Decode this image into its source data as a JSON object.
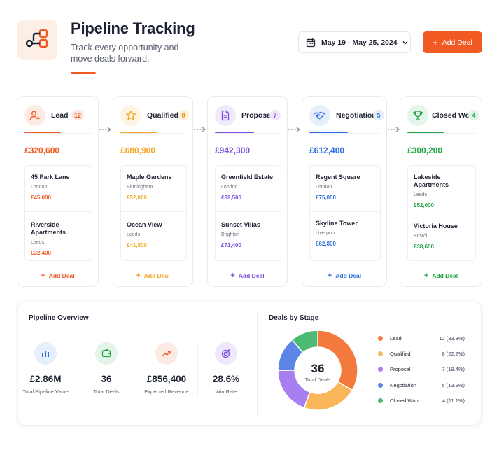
{
  "header": {
    "title": "Pipeline Tracking",
    "subtitle": "Track every opportunity and move deals forward.",
    "date_range": "May 19 - May 25, 2024",
    "add_deal_label": "Add Deal",
    "icons": {
      "logo": "pipeline-flow-icon",
      "date": "calendar-icon",
      "chevron": "chevron-down-icon",
      "add": "plus-icon"
    }
  },
  "colors": {
    "accent": "#f15a22",
    "lead": "#f15a22",
    "qualified": "#f5a623",
    "proposal": "#7b4fe0",
    "negotiation": "#2f6fe0",
    "closed_won": "#22a447"
  },
  "stages": [
    {
      "name": "Lead",
      "count": "12",
      "total": "£320,600",
      "icon": "user-plus-icon",
      "add_label": "Add Deal",
      "deals": [
        {
          "name": "45 Park Lane",
          "city": "London",
          "amount": "£45,000"
        },
        {
          "name": "Riverside Apartments",
          "city": "Leeds",
          "amount": "£32,400"
        }
      ]
    },
    {
      "name": "Qualified",
      "count": "8",
      "total": "£680,900",
      "icon": "star-icon",
      "add_label": "Add Deal",
      "deals": [
        {
          "name": "Maple Gardens",
          "city": "Birmingham",
          "amount": "£52,000"
        },
        {
          "name": "Ocean View",
          "city": "Leeds",
          "amount": "£41,500"
        }
      ]
    },
    {
      "name": "Proposal",
      "count": "7",
      "total": "£942,300",
      "icon": "document-icon",
      "add_label": "Add Deal",
      "deals": [
        {
          "name": "Greenfield Estate",
          "city": "London",
          "amount": "£82,500"
        },
        {
          "name": "Sunset Villas",
          "city": "Brighton",
          "amount": "£71,400"
        }
      ]
    },
    {
      "name": "Negotiation",
      "count": "5",
      "total": "£612,400",
      "icon": "handshake-icon",
      "add_label": "Add Deal",
      "deals": [
        {
          "name": "Regent Square",
          "city": "London",
          "amount": "£75,000"
        },
        {
          "name": "Skyline Tower",
          "city": "Liverpool",
          "amount": "£62,800"
        }
      ]
    },
    {
      "name": "Closed Won",
      "count": "4",
      "total": "£300,200",
      "icon": "trophy-icon",
      "add_label": "Add Deal",
      "deals": [
        {
          "name": "Lakeside Apartments",
          "city": "Leeds",
          "amount": "£52,000"
        },
        {
          "name": "Victoria House",
          "city": "Bristol",
          "amount": "£38,600"
        }
      ]
    }
  ],
  "overview": {
    "title": "Pipeline Overview",
    "stats": [
      {
        "value": "£2.86M",
        "label": "Total Pipeline Value",
        "icon": "bar-chart-icon"
      },
      {
        "value": "36",
        "label": "Total Deals",
        "icon": "wallet-icon"
      },
      {
        "value": "£856,400",
        "label": "Expected Revenue",
        "icon": "trend-up-icon"
      },
      {
        "value": "28.6%",
        "label": "Win Rate",
        "icon": "target-icon"
      }
    ]
  },
  "deals_by_stage": {
    "title": "Deals by Stage",
    "center_value": "36",
    "center_label": "Total Deals",
    "legend": [
      {
        "name": "Lead",
        "value": "12 (33.3%)",
        "color": "#f37a3c"
      },
      {
        "name": "Qualified",
        "value": "8 (22.2%)",
        "color": "#f9b75a"
      },
      {
        "name": "Proposal",
        "value": "7 (19.4%)",
        "color": "#a87ff0"
      },
      {
        "name": "Negotiation",
        "value": "5 (13.9%)",
        "color": "#5b86e8"
      },
      {
        "name": "Closed Won",
        "value": "4 (11.1%)",
        "color": "#4cba70"
      }
    ]
  },
  "chart_data": {
    "type": "pie",
    "title": "Deals by Stage",
    "categories": [
      "Lead",
      "Qualified",
      "Proposal",
      "Negotiation",
      "Closed Won"
    ],
    "values": [
      12,
      8,
      7,
      5,
      4
    ],
    "percentages": [
      33.3,
      22.2,
      19.4,
      13.9,
      11.1
    ],
    "total": 36,
    "legend": "right"
  }
}
